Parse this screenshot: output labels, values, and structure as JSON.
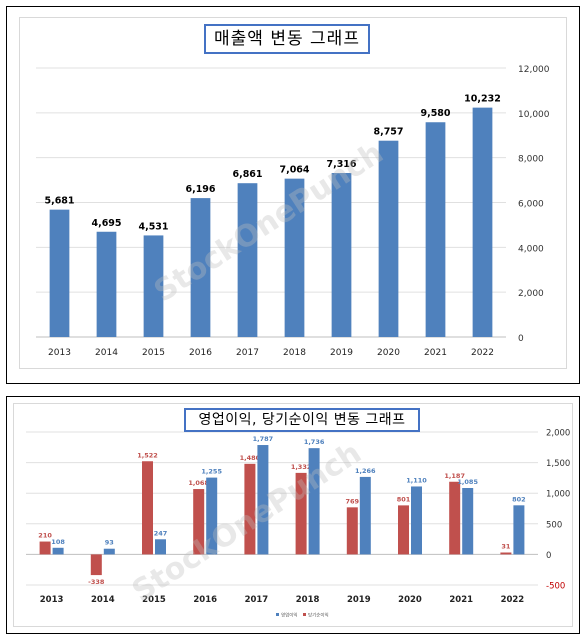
{
  "watermark": "StockOnePunch",
  "chart_data": [
    {
      "type": "bar",
      "title": "매출액 변동 그래프",
      "categories": [
        "2013",
        "2014",
        "2015",
        "2016",
        "2017",
        "2018",
        "2019",
        "2020",
        "2021",
        "2022"
      ],
      "values": [
        5681,
        4695,
        4531,
        6196,
        6861,
        7064,
        7316,
        8757,
        9580,
        10232
      ],
      "value_labels": [
        "5,681",
        "4,695",
        "4,531",
        "6,196",
        "6,861",
        "7,064",
        "7,316",
        "8,757",
        "9,580",
        "10,232"
      ],
      "y_ticks": [
        "0",
        "2,000",
        "4,000",
        "6,000",
        "8,000",
        "10,000",
        "12,000"
      ],
      "ylim": [
        0,
        12000
      ],
      "y_axis_side": "right",
      "grid": true,
      "colors": {
        "bar": "#4f81bd",
        "gridline": "#e0e0e0"
      }
    },
    {
      "type": "bar",
      "title": "영업이익, 당기순이익 변동 그래프",
      "categories": [
        "2013",
        "2014",
        "2015",
        "2016",
        "2017",
        "2018",
        "2019",
        "2020",
        "2021",
        "2022"
      ],
      "series": [
        {
          "name": "당기순이익",
          "color": "#c0504d",
          "values": [
            210,
            -338,
            1522,
            1068,
            1480,
            1332,
            769,
            801,
            1187,
            31
          ],
          "labels": [
            "210",
            "-338",
            "1,522",
            "1,068",
            "1,480",
            "1,332",
            "769",
            "801",
            "1,187",
            "31"
          ]
        },
        {
          "name": "영업이익",
          "color": "#4f81bd",
          "values": [
            108,
            93,
            247,
            1255,
            1787,
            1736,
            1266,
            1110,
            1085,
            802
          ],
          "labels": [
            "108",
            "93",
            "247",
            "1,255",
            "1,787",
            "1,736",
            "1,266",
            "1,110",
            "1,085",
            "802"
          ]
        }
      ],
      "legend": [
        "영업이익",
        "당기순이익"
      ],
      "legend_position": "bottom",
      "y_ticks": [
        "-500",
        "0",
        "500",
        "1,000",
        "1,500",
        "2,000"
      ],
      "ylim": [
        -500,
        2000
      ],
      "y_axis_side": "right",
      "grid": true,
      "colors": {
        "tick_negative": "#c00000",
        "gridline": "#e0e0e0"
      }
    }
  ]
}
